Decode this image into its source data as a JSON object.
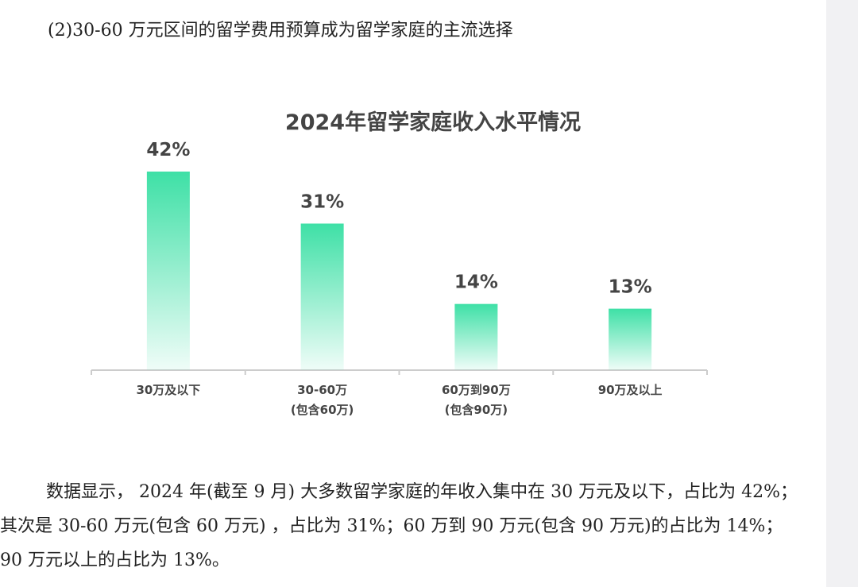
{
  "heading": "(2)30-60 万元区间的留学费用预算成为留学家庭的主流选择",
  "chart_data": {
    "type": "bar",
    "title": "2024年留学家庭收入水平情况",
    "categories": [
      "30万及以下",
      "30-60万\n(包含60万)",
      "60万到90万\n(包含90万)",
      "90万及以上"
    ],
    "values": [
      42,
      31,
      14,
      13
    ],
    "value_labels": [
      "42%",
      "31%",
      "14%",
      "13%"
    ],
    "color": "#3ee0a6"
  },
  "paragraph": "数据显示， 2024 年(截至 9 月) 大多数留学家庭的年收入集中在 30 万元及以下，占比为 42%；其次是 30-60 万元(包含 60 万元) ，占比为 31%；60 万到 90 万元(包含 90 万元)的占比为 14%；90 万元以上的占比为 13%。"
}
